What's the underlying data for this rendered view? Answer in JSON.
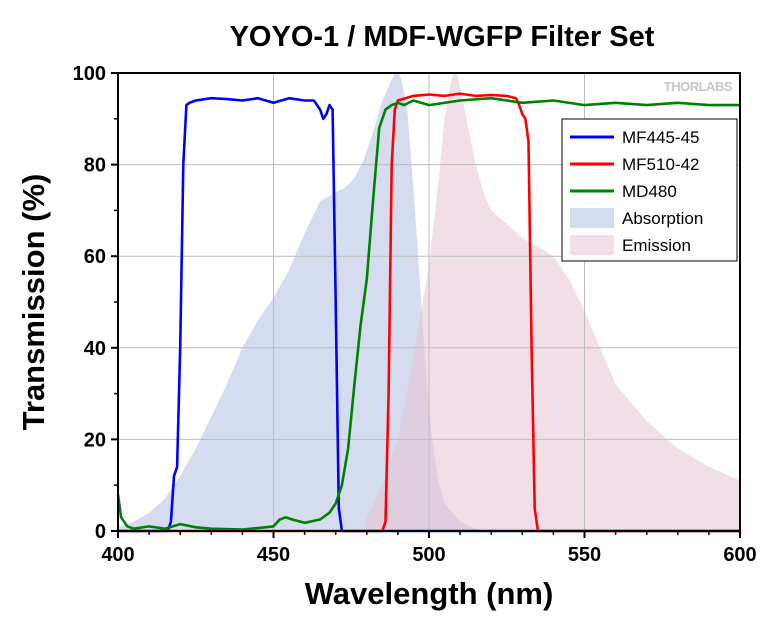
{
  "logo": "THORLABS",
  "chart_data": {
    "type": "line",
    "title": "YOYO-1 / MDF-WGFP Filter Set",
    "xlabel": "Wavelength (nm)",
    "ylabel": "Transmission (%)",
    "xlim": [
      400,
      600
    ],
    "ylim": [
      0,
      100
    ],
    "xticks": [
      400,
      450,
      500,
      550,
      600
    ],
    "yticks": [
      0,
      20,
      40,
      60,
      80,
      100
    ],
    "grid": true,
    "legend_position": "right",
    "series": [
      {
        "name": "MF445-45",
        "kind": "line",
        "color": "#0000ff",
        "x": [
          400,
          416,
          417,
          418,
          419,
          420,
          421,
          422,
          423,
          425,
          430,
          435,
          440,
          445,
          450,
          455,
          460,
          463,
          465,
          466,
          467,
          468,
          469,
          470,
          471,
          472,
          600
        ],
        "y": [
          0,
          0,
          2,
          12,
          14,
          40,
          80,
          93,
          93.5,
          94,
          94.5,
          94.3,
          94,
          94.5,
          93.5,
          94.5,
          94,
          94,
          92,
          90,
          91,
          93,
          92,
          50,
          5,
          0,
          0
        ]
      },
      {
        "name": "MF510-42",
        "kind": "line",
        "color": "#ff0000",
        "x": [
          400,
          485,
          486,
          487,
          488,
          489,
          490,
          495,
          500,
          505,
          510,
          515,
          520,
          525,
          528,
          529,
          530,
          531,
          532,
          533,
          534,
          535,
          600
        ],
        "y": [
          0,
          0,
          2,
          30,
          80,
          92,
          94,
          95,
          95.3,
          95,
          95.5,
          95,
          95.2,
          95,
          94.5,
          93,
          91,
          90,
          85,
          40,
          5,
          0,
          0
        ]
      },
      {
        "name": "MD480",
        "kind": "line",
        "color": "#008000",
        "x": [
          400,
          401,
          403,
          405,
          410,
          415,
          420,
          425,
          430,
          440,
          450,
          452,
          454,
          456,
          460,
          465,
          468,
          470,
          472,
          474,
          476,
          478,
          480,
          482,
          484,
          486,
          488,
          490,
          492,
          495,
          500,
          510,
          520,
          530,
          540,
          550,
          560,
          570,
          580,
          590,
          600
        ],
        "y": [
          8,
          3,
          1,
          0.5,
          1,
          0.5,
          1.5,
          0.8,
          0.5,
          0.3,
          1,
          2.5,
          3,
          2.5,
          1.8,
          2.5,
          4,
          6,
          10,
          18,
          32,
          45,
          55,
          72,
          88,
          92,
          93,
          93.5,
          93,
          94,
          93,
          94,
          94.5,
          93.5,
          94,
          93,
          93.5,
          93,
          93.5,
          93,
          93
        ]
      },
      {
        "name": "Absorption",
        "kind": "area",
        "color": "#b4bfe3",
        "x": [
          400,
          405,
          410,
          415,
          420,
          425,
          430,
          435,
          440,
          445,
          450,
          455,
          460,
          465,
          470,
          473,
          476,
          479,
          482,
          485,
          487,
          489,
          490,
          491,
          493,
          495,
          497,
          499,
          501,
          503,
          505,
          510,
          515,
          520,
          600
        ],
        "y": [
          1,
          2,
          4,
          7,
          12,
          18,
          25,
          32,
          40,
          46,
          51,
          57,
          65,
          72,
          74,
          75,
          77,
          81,
          87,
          94,
          97,
          100,
          100,
          99,
          92,
          75,
          55,
          35,
          20,
          11,
          6,
          2,
          0.5,
          0,
          0
        ]
      },
      {
        "name": "Emission",
        "kind": "area",
        "color": "#e6c3d3",
        "x": [
          400,
          479,
          480,
          485,
          490,
          495,
          500,
          503,
          505,
          507,
          508,
          509,
          510,
          512,
          515,
          518,
          520,
          525,
          530,
          535,
          540,
          545,
          550,
          555,
          560,
          570,
          580,
          590,
          600
        ],
        "y": [
          0,
          0,
          3,
          10,
          20,
          38,
          58,
          76,
          90,
          98,
          100,
          100,
          97,
          90,
          80,
          73,
          70,
          67,
          64,
          62,
          60,
          55,
          48,
          40,
          32,
          24,
          18,
          14,
          11
        ]
      }
    ]
  }
}
